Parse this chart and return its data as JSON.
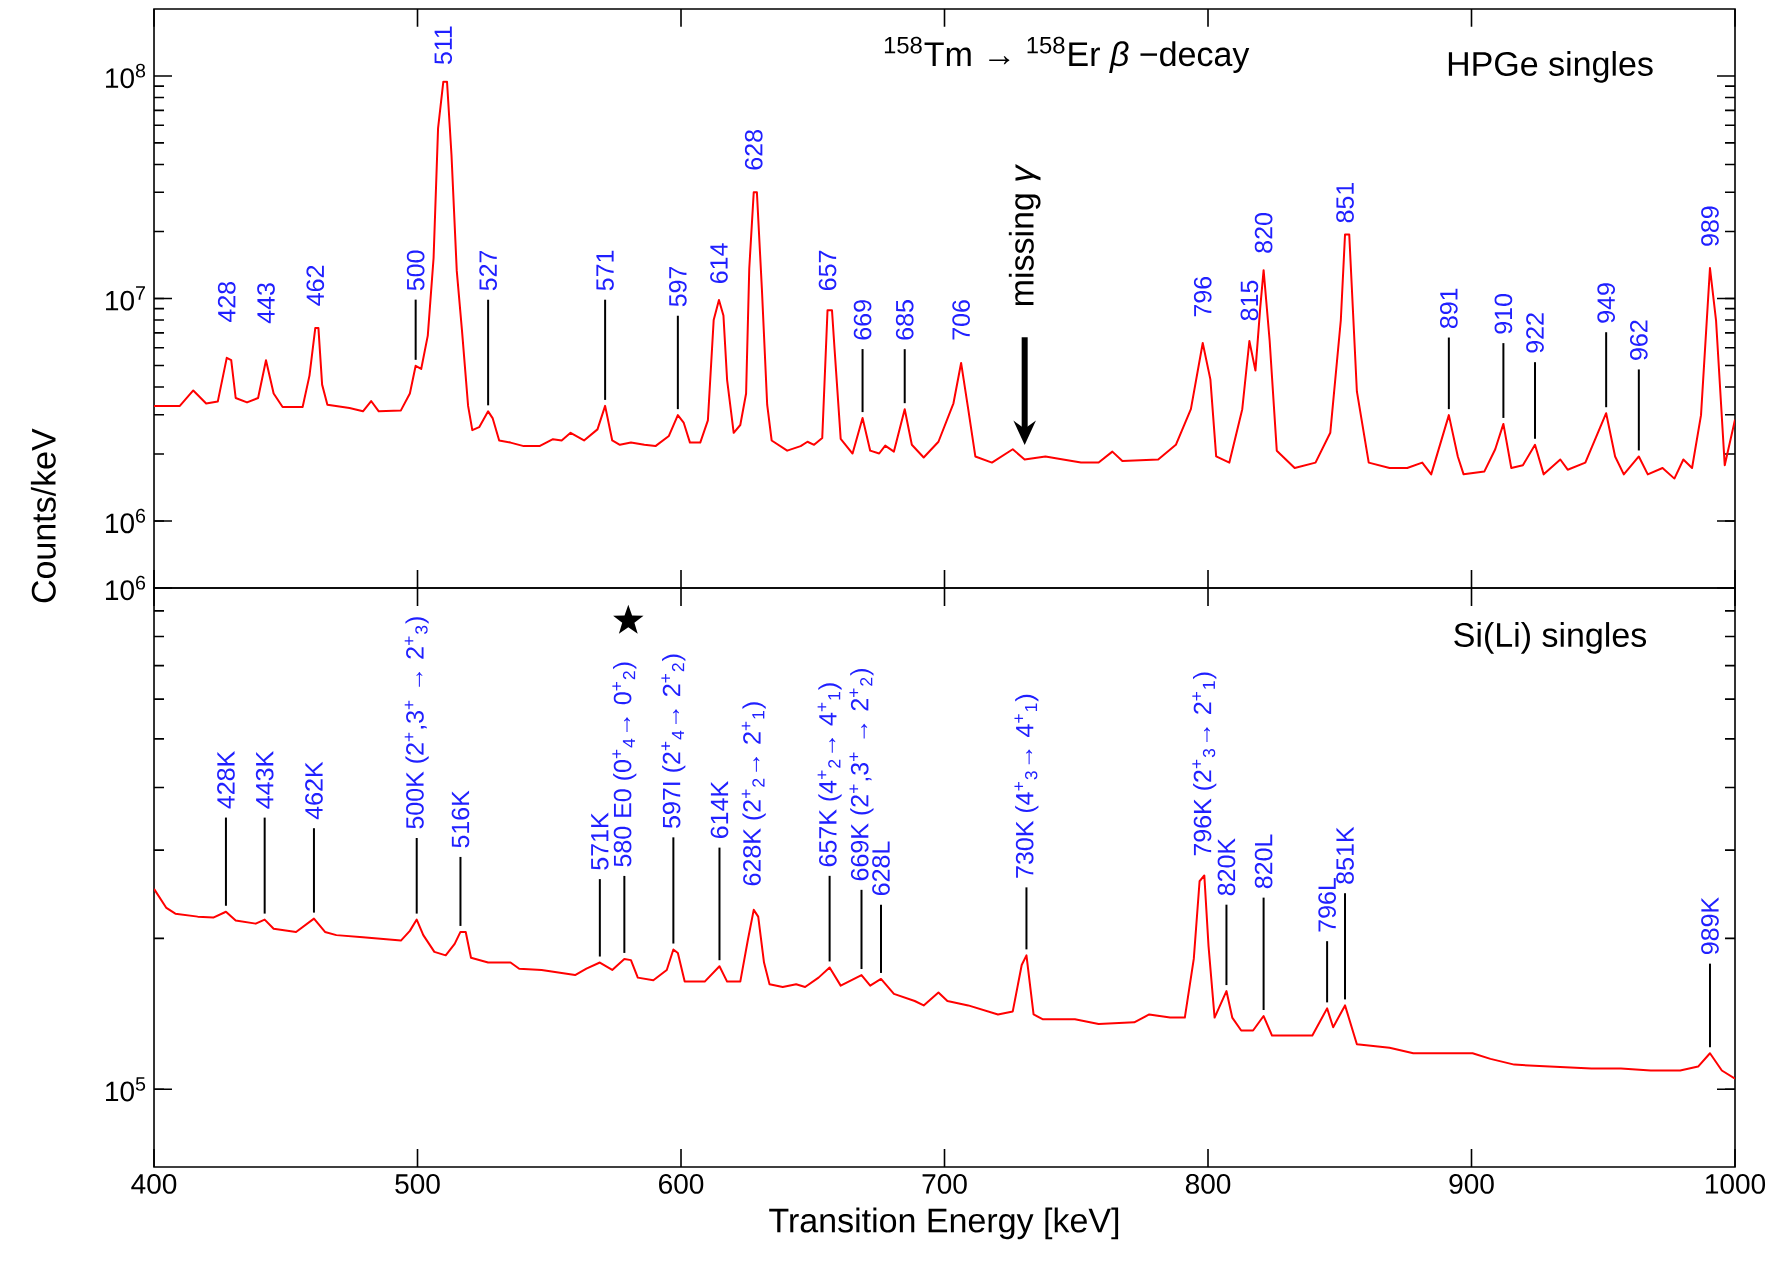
{
  "chart_data": [
    {
      "type": "line",
      "title": "$^{158}$Tm → $^{158}$Er *β* −decay",
      "subtitle": "HPGe singles",
      "ylabel": "Counts/keV",
      "log": "y",
      "xlim": [
        400,
        1000
      ],
      "xticks": [
        400,
        500,
        600,
        700,
        800,
        900,
        1000
      ],
      "ylim": [
        500000,
        200000000
      ],
      "yticks": [
        {
          "value": 1000000,
          "label": "10$^{6}$"
        },
        {
          "value": 10000000,
          "label": "10$^{7}$"
        },
        {
          "value": 100000000,
          "label": "10$^{8}$"
        }
      ],
      "tick_labels": "y",
      "series": [
        {
          "color": "#ff0000",
          "x": [
            400,
            409.8,
            414.9,
            419.8,
            424.2,
            427.6,
            429.3,
            431,
            435.3,
            439.5,
            442.5,
            445.4,
            448.8,
            456.4,
            459,
            461.2,
            462.4,
            463.8,
            465.8,
            474.2,
            479.3,
            482.4,
            485.3,
            493.7,
            497.1,
            499.3,
            501.4,
            503.9,
            506.1,
            507.8,
            509.8,
            511.2,
            512.9,
            514.9,
            516.9,
            519.2,
            520.8,
            523.4,
            526.8,
            528.5,
            531,
            535.3,
            540.3,
            546.3,
            551.4,
            554.7,
            558.1,
            563.2,
            568.3,
            571.2,
            573.9,
            576.8,
            581,
            586.1,
            590.3,
            595.4,
            598.8,
            601,
            603.4,
            607.3,
            610.2,
            612.4,
            614.4,
            616.1,
            617.5,
            620,
            622.5,
            624.7,
            625.9,
            627.6,
            628.8,
            630.7,
            632.7,
            634.4,
            640.3,
            645.4,
            648,
            650.5,
            653.6,
            655.6,
            657.3,
            658.3,
            660.6,
            665.1,
            668.9,
            671.8,
            675.2,
            677.5,
            680.8,
            684.9,
            687.6,
            692.1,
            697.7,
            703.4,
            706.3,
            709,
            711.7,
            718,
            725.9,
            730.4,
            738.3,
            745,
            751.8,
            758.5,
            763.7,
            767.5,
            781.1,
            787.8,
            793.5,
            798,
            800.9,
            803.1,
            808.1,
            813,
            815.7,
            818,
            819.8,
            821.1,
            823.4,
            826.1,
            832.9,
            840.8,
            846.4,
            850.4,
            852,
            853.6,
            856.5,
            861,
            868.9,
            875.6,
            881.3,
            884.7,
            891.4,
            894.8,
            897,
            904.9,
            909,
            912.1,
            915.1,
            919.5,
            924.1,
            927.4,
            933.7,
            936.5,
            943.2,
            951.1,
            954.5,
            957.8,
            963.5,
            966.9,
            972.5,
            977,
            980.4,
            983.7,
            987.1,
            990.5,
            992.8,
            996.1,
            1000
          ],
          "values": [
            3290000,
            3290000,
            3860000,
            3370000,
            3440000,
            5410000,
            5280000,
            3570000,
            3410000,
            3570000,
            5280000,
            3740000,
            3250000,
            3250000,
            4500000,
            7360000,
            7360000,
            4100000,
            3330000,
            3220000,
            3110000,
            3460000,
            3110000,
            3140000,
            3740000,
            4980000,
            4820000,
            6810000,
            15200000,
            58100000,
            94200000,
            94200000,
            44100000,
            13300000,
            7130000,
            3290000,
            2560000,
            2640000,
            3110000,
            2900000,
            2300000,
            2250000,
            2170000,
            2170000,
            2330000,
            2300000,
            2490000,
            2300000,
            2580000,
            3290000,
            2300000,
            2200000,
            2250000,
            2200000,
            2170000,
            2410000,
            2990000,
            2770000,
            2250000,
            2250000,
            2830000,
            8000000,
            9840000,
            8380000,
            4300000,
            2490000,
            2700000,
            3740000,
            13600000,
            30000000,
            30000000,
            11000000,
            3330000,
            2300000,
            2070000,
            2170000,
            2270000,
            2200000,
            2360000,
            8850000,
            8850000,
            5870000,
            2340000,
            2010000,
            2900000,
            2070000,
            2010000,
            2180000,
            2050000,
            3180000,
            2200000,
            1930000,
            2270000,
            3380000,
            5130000,
            3180000,
            1950000,
            1830000,
            2100000,
            1890000,
            1950000,
            1890000,
            1830000,
            1830000,
            2050000,
            1860000,
            1890000,
            2200000,
            3180000,
            6310000,
            4330000,
            1950000,
            1830000,
            3180000,
            6440000,
            4740000,
            9020000,
            13400000,
            6440000,
            2070000,
            1730000,
            1830000,
            2490000,
            7980000,
            19400000,
            19400000,
            3820000,
            1830000,
            1730000,
            1730000,
            1830000,
            1620000,
            2990000,
            1950000,
            1620000,
            1670000,
            2100000,
            2730000,
            1730000,
            1780000,
            2200000,
            1620000,
            1890000,
            1700000,
            1830000,
            3050000,
            1950000,
            1620000,
            1950000,
            1620000,
            1730000,
            1550000,
            1890000,
            1730000,
            2990000,
            13700000,
            7980000,
            1780000,
            2850000
          ]
        }
      ],
      "annotations": [
        {
          "text": "428",
          "x": 427.6,
          "y": 5410000
        },
        {
          "text": "443",
          "x": 442.5,
          "y": 5280000
        },
        {
          "text": "462",
          "x": 461.2,
          "y": 7360000
        },
        {
          "text": "500",
          "x": 499.3,
          "y": 4980000
        },
        {
          "text": "511",
          "x": 509.8,
          "y": 94200000
        },
        {
          "text": "527",
          "x": 526.8,
          "y": 3110000
        },
        {
          "text": "571",
          "x": 571.2,
          "y": 3290000
        },
        {
          "text": "597",
          "x": 598.8,
          "y": 2990000
        },
        {
          "text": "614",
          "x": 614.4,
          "y": 9840000
        },
        {
          "text": "628",
          "x": 627.6,
          "y": 30000000
        },
        {
          "text": "657",
          "x": 655.6,
          "y": 8850000
        },
        {
          "text": "669",
          "x": 668.9,
          "y": 2900000
        },
        {
          "text": "685",
          "x": 684.9,
          "y": 3180000
        },
        {
          "text": "706",
          "x": 706.3,
          "y": 5130000
        },
        {
          "text": "796",
          "x": 798,
          "y": 6310000
        },
        {
          "text": "815",
          "x": 815.7,
          "y": 6440000
        },
        {
          "text": "820",
          "x": 821.1,
          "y": 13400000
        },
        {
          "text": "851",
          "x": 852,
          "y": 19400000
        },
        {
          "text": "891",
          "x": 891.4,
          "y": 2990000
        },
        {
          "text": "910",
          "x": 912.1,
          "y": 2730000
        },
        {
          "text": "922",
          "x": 924.1,
          "y": 2200000
        },
        {
          "text": "949",
          "x": 951.1,
          "y": 3050000
        },
        {
          "text": "962",
          "x": 963.5,
          "y": 1950000
        },
        {
          "text": "989",
          "x": 990.5,
          "y": 13700000
        },
        "missing *γ*"
      ]
    },
    {
      "type": "line",
      "title": "Si(Li) singles",
      "xlabel": "Transition Energy [keV]",
      "log": "y",
      "xlim": [
        400,
        1000
      ],
      "xticks": [
        400,
        500,
        600,
        700,
        800,
        900,
        1000
      ],
      "ylim": [
        70000,
        1000000
      ],
      "yticks": [
        {
          "value": 100000,
          "label": "10$^{5}$"
        },
        {
          "value": 1000000,
          "label": "10$^{6}$"
        }
      ],
      "series": [
        {
          "color": "#ff0000",
          "x": [
            400,
            404.7,
            408.1,
            416.6,
            422.5,
            427.3,
            431,
            438.6,
            442,
            445.4,
            453.9,
            460.7,
            464.9,
            469.2,
            479.3,
            493.7,
            497.1,
            499.7,
            502.2,
            506.4,
            510.7,
            514.1,
            516.3,
            518.3,
            520.3,
            526.8,
            535.3,
            538.6,
            547.1,
            559.8,
            564.1,
            569.2,
            573.9,
            578.5,
            581,
            583.6,
            589.5,
            594.6,
            597.1,
            598.8,
            601.4,
            609,
            614.6,
            617.5,
            622.5,
            625.4,
            627.6,
            629.3,
            631.5,
            633.6,
            638.6,
            643.7,
            647.1,
            652.2,
            656.4,
            660.6,
            668.5,
            671.8,
            675.9,
            680.8,
            688.7,
            692.1,
            697.7,
            701.1,
            709,
            720.3,
            725.9,
            729.3,
            731.1,
            733.8,
            737.2,
            749.5,
            758.5,
            772,
            777.7,
            785.6,
            791.2,
            794.6,
            796.8,
            798.6,
            800.2,
            802.5,
            807,
            809.2,
            812.6,
            817.1,
            821.1,
            824.3,
            832.9,
            839.6,
            845.2,
            847.5,
            852,
            856.5,
            868.9,
            877.9,
            889.2,
            900.4,
            907.2,
            916.2,
            929.7,
            945.5,
            956.7,
            968,
            979.2,
            986,
            990.5,
            995,
            1000
          ],
          "values": [
            251000,
            230000,
            224000,
            221000,
            220000,
            226000,
            217000,
            214000,
            218000,
            209000,
            206000,
            219000,
            206000,
            203000,
            201000,
            198000,
            207000,
            218000,
            203000,
            188000,
            185000,
            195000,
            206000,
            206000,
            183000,
            179000,
            179000,
            174000,
            173000,
            169000,
            174000,
            179000,
            173000,
            182000,
            181000,
            167000,
            165000,
            173000,
            190000,
            187000,
            164000,
            164000,
            176000,
            164000,
            164000,
            199000,
            228000,
            221000,
            179000,
            162000,
            160000,
            162000,
            160000,
            167000,
            175000,
            161000,
            169000,
            161000,
            166000,
            155000,
            150000,
            147000,
            156000,
            150000,
            147000,
            141000,
            143000,
            177000,
            185000,
            141000,
            138000,
            138000,
            135000,
            136000,
            141000,
            139000,
            139000,
            182000,
            260000,
            267000,
            193000,
            139000,
            157000,
            139000,
            131000,
            131000,
            140000,
            128000,
            128000,
            128000,
            145000,
            133000,
            147000,
            123000,
            121000,
            118000,
            118000,
            118000,
            115000,
            112000,
            111000,
            110000,
            110000,
            109000,
            109000,
            111000,
            118000,
            109000,
            105000
          ]
        },
        {
          "type": "scatter",
          "marker": "star",
          "color": "#000000",
          "x": [
            580
          ],
          "values": [
            860000
          ]
        }
      ],
      "annotations": [
        {
          "text": "428K",
          "x": 427.3,
          "y": 226000
        },
        {
          "text": "443K",
          "x": 442,
          "y": 218000
        },
        {
          "text": "462K",
          "x": 460.7,
          "y": 219000
        },
        {
          "text": "500K (2$^{+}$,3$^{+}$ → 2$^{+}$$_{3}$)",
          "x": 499.7,
          "y": 218000
        },
        {
          "text": "516K",
          "x": 516.3,
          "y": 206000
        },
        {
          "text": "571K",
          "x": 569.2,
          "y": 179000
        },
        {
          "text": "580 E0 (0$^{+}$$_{4}$→ 0$^{+}$$_{2}$)",
          "x": 578.5,
          "y": 182000
        },
        {
          "text": "597I (2$^{+}$$_{4}$→ 2$^{+}$$_{2}$)",
          "x": 597.1,
          "y": 190000
        },
        {
          "text": "614K",
          "x": 614.6,
          "y": 176000
        },
        {
          "text": "628K (2$^{+}$$_{2}$→ 2$^{+}$$_{1}$)",
          "x": 627.6,
          "y": 228000
        },
        {
          "text": "657K (4$^{+}$$_{2}$→ 4$^{+}$$_{1}$)",
          "x": 656.4,
          "y": 175000
        },
        {
          "text": "669K (2$^{+}$,3$^{+}$ → 2$^{+}$$_{2}$)",
          "x": 668.5,
          "y": 169000
        },
        {
          "text": "628L",
          "x": 675.9,
          "y": 166000
        },
        {
          "text": "730K (4$^{+}$$_{3}$→ 4$^{+}$$_{1}$)",
          "x": 731.1,
          "y": 185000
        },
        {
          "text": "796K (2$^{+}$$_{3}$→ 2$^{+}$$_{1}$)",
          "x": 798.6,
          "y": 267000
        },
        {
          "text": "820K",
          "x": 807,
          "y": 157000
        },
        {
          "text": "820L",
          "x": 821.1,
          "y": 140000
        },
        {
          "text": "796L",
          "x": 845.2,
          "y": 145000
        },
        {
          "text": "851K",
          "x": 852,
          "y": 147000
        },
        {
          "text": "989K",
          "x": 990.5,
          "y": 118000
        }
      ]
    }
  ]
}
